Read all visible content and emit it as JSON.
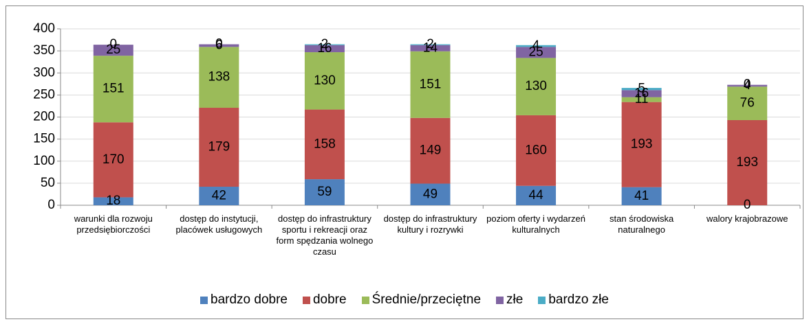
{
  "chart_data": {
    "type": "stacked_bar",
    "categories": [
      "warunki dla rozwoju przedsiębiorczości",
      "dostęp do instytucji, placówek usługowych",
      "dostęp do infrastruktury sportu i rekreacji oraz form spędzania wolnego czasu",
      "dostęp do infrastruktury kultury i rozrywki",
      "poziom oferty i wydarzeń kulturalnych",
      "stan środowiska naturalnego",
      "walory krajobrazowe"
    ],
    "series": [
      {
        "name": "bardzo dobre",
        "color": "#4f81bd",
        "values": [
          18,
          42,
          59,
          49,
          44,
          41,
          0
        ]
      },
      {
        "name": "dobre",
        "color": "#c0504d",
        "values": [
          170,
          179,
          158,
          149,
          160,
          193,
          193
        ]
      },
      {
        "name": "Średnie/przeciętne",
        "color": "#9bbb59",
        "values": [
          151,
          138,
          130,
          151,
          130,
          11,
          76
        ]
      },
      {
        "name": "złe",
        "color": "#8064a2",
        "values": [
          25,
          6,
          16,
          14,
          25,
          16,
          4
        ]
      },
      {
        "name": "bardzo złe",
        "color": "#4bacc6",
        "values": [
          0,
          0,
          2,
          2,
          4,
          5,
          0
        ]
      }
    ],
    "ylim": [
      0,
      400
    ],
    "yticks": [
      0,
      50,
      100,
      150,
      200,
      250,
      300,
      350,
      400
    ],
    "grid": true,
    "legend": "bottom"
  }
}
